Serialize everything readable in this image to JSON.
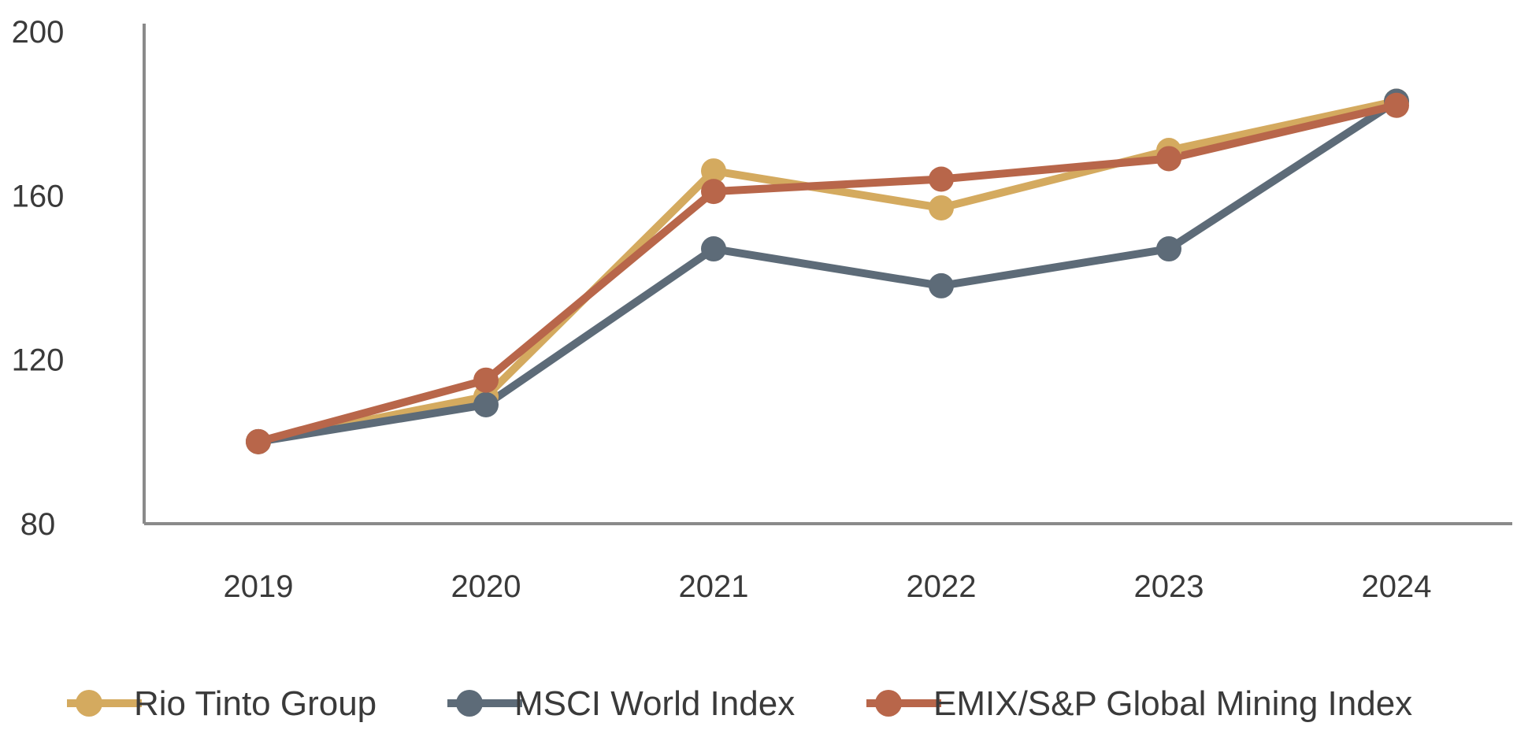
{
  "chart_data": {
    "type": "line",
    "title": "",
    "xlabel": "",
    "ylabel": "",
    "categories": [
      "2019",
      "2020",
      "2021",
      "2022",
      "2023",
      "2024"
    ],
    "ylim": [
      80,
      200
    ],
    "yticks": [
      80,
      120,
      160,
      200
    ],
    "grid": false,
    "legend_position": "bottom",
    "series": [
      {
        "name": "Rio Tinto Group",
        "color": "#d4aa5f",
        "values": [
          100,
          111,
          166,
          157,
          171,
          183
        ]
      },
      {
        "name": "MSCI World Index",
        "color": "#5d6b78",
        "values": [
          100,
          109,
          147,
          138,
          147,
          183
        ]
      },
      {
        "name": "EMIX/S&P Global Mining Index",
        "color": "#b8664a",
        "values": [
          100,
          115,
          161,
          164,
          169,
          182
        ]
      }
    ]
  }
}
